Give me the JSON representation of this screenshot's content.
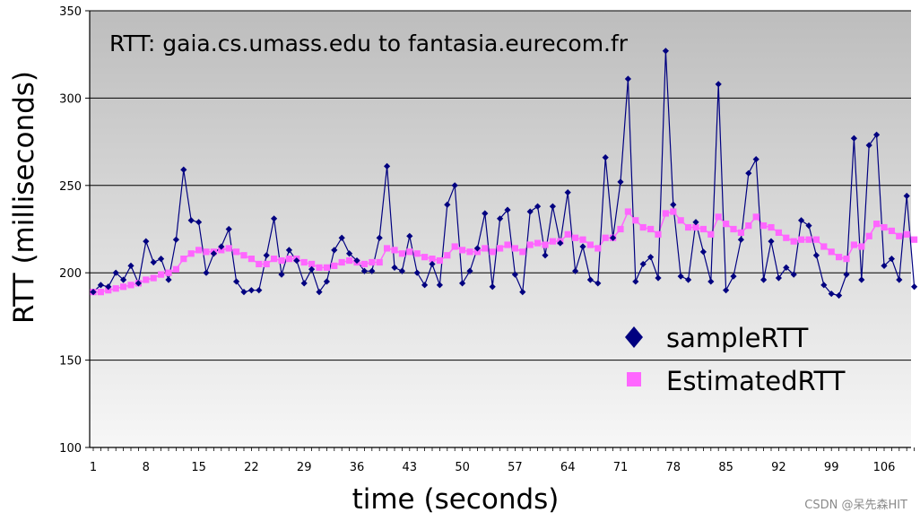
{
  "chart_data": {
    "type": "line",
    "title": "RTT: gaia.cs.umass.edu to fantasia.eurecom.fr",
    "xlabel": "time (seconds)",
    "ylabel": "RTT (milliseconds)",
    "ylim": [
      100,
      350
    ],
    "yticks": [
      100,
      150,
      200,
      250,
      300,
      350
    ],
    "xlim": [
      1,
      112
    ],
    "xticks": [
      1,
      8,
      15,
      22,
      29,
      36,
      43,
      50,
      57,
      64,
      71,
      78,
      85,
      92,
      99,
      106
    ],
    "grid": "horizontal",
    "legend": "right",
    "series": [
      {
        "name": "sampleRTT",
        "color": "#000080",
        "marker": "diamond",
        "values": [
          189,
          193,
          192,
          200,
          196,
          204,
          194,
          218,
          206,
          208,
          196,
          219,
          259,
          230,
          229,
          200,
          211,
          215,
          225,
          195,
          189,
          190,
          190,
          210,
          231,
          199,
          213,
          207,
          194,
          202,
          189,
          195,
          213,
          220,
          211,
          207,
          201,
          201,
          220,
          261,
          203,
          201,
          221,
          200,
          193,
          205,
          193,
          239,
          250,
          194,
          201,
          214,
          234,
          192,
          231,
          236,
          199,
          189,
          235,
          238,
          210,
          238,
          217,
          246,
          201,
          215,
          196,
          194,
          266,
          220,
          252,
          311,
          195,
          205,
          209,
          197,
          327,
          239,
          198,
          196,
          229,
          212,
          195,
          308,
          190,
          198,
          219,
          257,
          265,
          196,
          218,
          197,
          203,
          199,
          230,
          227,
          210,
          193,
          188,
          187,
          199,
          277,
          196,
          273,
          279,
          204,
          208,
          196,
          244,
          192
        ]
      },
      {
        "name": "EstimatedRTT",
        "color": "#ff66ff",
        "marker": "square",
        "values": [
          189,
          189,
          190,
          191,
          192,
          193,
          194,
          196,
          197,
          199,
          200,
          202,
          208,
          211,
          213,
          212,
          212,
          213,
          214,
          212,
          210,
          208,
          205,
          205,
          208,
          207,
          208,
          208,
          206,
          205,
          203,
          203,
          204,
          206,
          207,
          206,
          205,
          206,
          206,
          214,
          213,
          211,
          212,
          211,
          209,
          208,
          207,
          210,
          215,
          213,
          212,
          212,
          214,
          212,
          214,
          216,
          214,
          212,
          216,
          217,
          216,
          218,
          218,
          222,
          220,
          219,
          216,
          214,
          220,
          220,
          225,
          235,
          230,
          226,
          225,
          222,
          234,
          235,
          230,
          226,
          226,
          225,
          222,
          232,
          228,
          225,
          223,
          227,
          232,
          227,
          226,
          223,
          220,
          218,
          219,
          219,
          219,
          215,
          212,
          209,
          208,
          216,
          215,
          221,
          228,
          226,
          224,
          221,
          222,
          219
        ]
      }
    ]
  },
  "watermark": "CSDN @呆先森HIT"
}
